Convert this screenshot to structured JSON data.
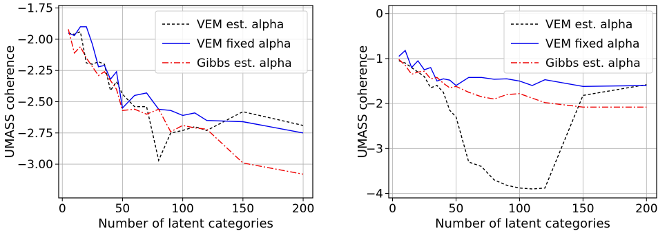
{
  "chart_data": [
    {
      "type": "line",
      "xlabel": "Number of latent categories",
      "ylabel": "UMASS coherence",
      "xlim": [
        -3,
        208
      ],
      "ylim": [
        -3.27,
        -1.73
      ],
      "xticks": [
        0,
        50,
        100,
        150,
        200
      ],
      "xtick_labels": [
        "0",
        "50",
        "100",
        "150",
        "200"
      ],
      "yticks": [
        -3.0,
        -2.75,
        -2.5,
        -2.25,
        -2.0,
        -1.75
      ],
      "ytick_labels": [
        "−3.00",
        "−2.75",
        "−2.50",
        "−2.25",
        "−2.00",
        "−1.75"
      ],
      "grid": true,
      "legend_position": "top-right",
      "series": [
        {
          "name": "VEM est. alpha",
          "color": "#000000",
          "dash": "dashed",
          "x": [
            5,
            10,
            15,
            20,
            25,
            30,
            35,
            40,
            45,
            50,
            60,
            70,
            80,
            90,
            100,
            110,
            120,
            150,
            200
          ],
          "y": [
            -1.95,
            -1.96,
            -1.94,
            -2.19,
            -2.2,
            -2.18,
            -2.2,
            -2.41,
            -2.34,
            -2.44,
            -2.54,
            -2.54,
            -2.97,
            -2.75,
            -2.73,
            -2.7,
            -2.73,
            -2.58,
            -2.69
          ]
        },
        {
          "name": "VEM fixed alpha",
          "color": "#0000ee",
          "dash": "solid",
          "x": [
            5,
            10,
            15,
            20,
            25,
            30,
            35,
            40,
            45,
            50,
            60,
            70,
            80,
            90,
            100,
            110,
            120,
            150,
            200
          ],
          "y": [
            -1.95,
            -1.97,
            -1.9,
            -1.9,
            -2.04,
            -2.22,
            -2.21,
            -2.32,
            -2.26,
            -2.55,
            -2.45,
            -2.43,
            -2.56,
            -2.57,
            -2.61,
            -2.59,
            -2.65,
            -2.66,
            -2.75
          ]
        },
        {
          "name": "Gibbs est. alpha",
          "color": "#ee0000",
          "dash": "dashdot",
          "x": [
            5,
            10,
            15,
            20,
            25,
            30,
            35,
            40,
            45,
            50,
            60,
            70,
            80,
            90,
            100,
            110,
            120,
            150,
            200
          ],
          "y": [
            -1.92,
            -2.11,
            -2.06,
            -2.15,
            -2.22,
            -2.29,
            -2.26,
            -2.33,
            -2.4,
            -2.57,
            -2.56,
            -2.6,
            -2.56,
            -2.74,
            -2.69,
            -2.71,
            -2.72,
            -2.99,
            -3.08
          ]
        }
      ]
    },
    {
      "type": "line",
      "xlabel": "Number of latent categories",
      "ylabel": "UMASS coherence",
      "xlim": [
        -3,
        208
      ],
      "ylim": [
        -4.1,
        0.18
      ],
      "xticks": [
        0,
        50,
        100,
        150,
        200
      ],
      "xtick_labels": [
        "0",
        "50",
        "100",
        "150",
        "200"
      ],
      "yticks": [
        -4,
        -3,
        -2,
        -1,
        0
      ],
      "ytick_labels": [
        "−4",
        "−3",
        "−2",
        "−1",
        "0"
      ],
      "grid": true,
      "legend_position": "top-right",
      "series": [
        {
          "name": "VEM est. alpha",
          "color": "#000000",
          "dash": "dashed",
          "x": [
            5,
            10,
            15,
            20,
            25,
            30,
            35,
            40,
            45,
            50,
            60,
            70,
            80,
            90,
            100,
            110,
            120,
            150,
            200
          ],
          "y": [
            -1.05,
            -1.1,
            -1.2,
            -1.3,
            -1.4,
            -1.65,
            -1.6,
            -1.75,
            -2.15,
            -2.3,
            -3.3,
            -3.4,
            -3.7,
            -3.82,
            -3.88,
            -3.9,
            -3.88,
            -1.82,
            -1.58
          ]
        },
        {
          "name": "VEM fixed alpha",
          "color": "#0000ee",
          "dash": "solid",
          "x": [
            5,
            10,
            15,
            20,
            25,
            30,
            35,
            40,
            45,
            50,
            60,
            70,
            80,
            90,
            100,
            110,
            120,
            150,
            200
          ],
          "y": [
            -0.95,
            -0.82,
            -1.2,
            -1.05,
            -1.25,
            -1.2,
            -1.5,
            -1.45,
            -1.48,
            -1.6,
            -1.42,
            -1.42,
            -1.46,
            -1.45,
            -1.5,
            -1.6,
            -1.47,
            -1.62,
            -1.6
          ]
        },
        {
          "name": "Gibbs est. alpha",
          "color": "#ee0000",
          "dash": "dashdot",
          "x": [
            5,
            10,
            15,
            20,
            25,
            30,
            35,
            40,
            45,
            50,
            60,
            70,
            80,
            90,
            100,
            110,
            120,
            150,
            200
          ],
          "y": [
            -1.02,
            -1.15,
            -1.35,
            -1.3,
            -1.28,
            -1.45,
            -1.42,
            -1.55,
            -1.65,
            -1.62,
            -1.75,
            -1.85,
            -1.9,
            -1.8,
            -1.78,
            -1.88,
            -1.98,
            -2.08,
            -2.08
          ]
        }
      ]
    }
  ]
}
